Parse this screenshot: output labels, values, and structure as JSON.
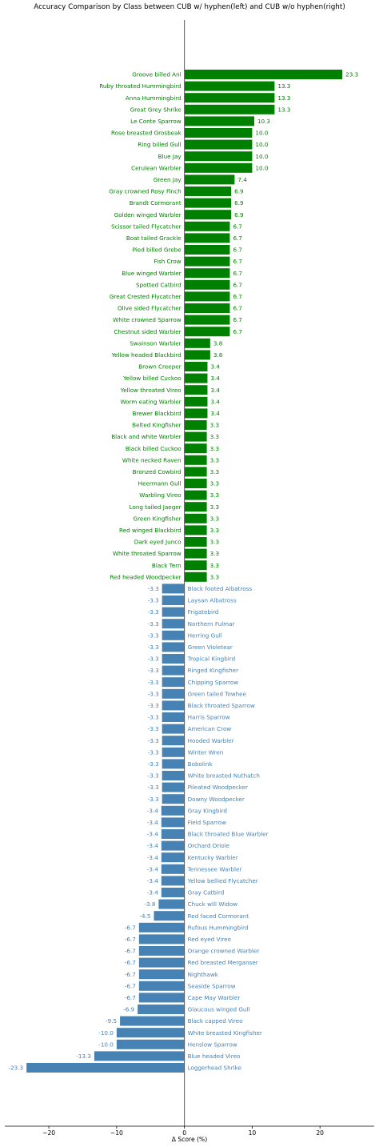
{
  "chart_data": {
    "type": "bar",
    "orientation": "horizontal",
    "title": "Accuracy Comparison by Class between CUB w/ hyphen(left) and CUB w/o hyphen(right)",
    "xlabel": "Δ Score (%)",
    "ylabel": "",
    "xlim": [
      -26.5,
      28
    ],
    "xticks": [
      -20,
      -10,
      0,
      10,
      20
    ],
    "grid": false,
    "colors": {
      "positive": "#008000",
      "negative": "#4682b4",
      "zero_line": "#555555"
    },
    "categories": [
      "Groove billed Ani",
      "Ruby throated Hummingbird",
      "Anna Hummingbird",
      "Great Grey Shrike",
      "Le Conte Sparrow",
      "Rose breasted Grosbeak",
      "Ring billed Gull",
      "Blue Jay",
      "Cerulean Warbler",
      "Green Jay",
      "Gray crowned Rosy Finch",
      "Brandt Cormorant",
      "Golden winged Warbler",
      "Scissor tailed Flycatcher",
      "Boat tailed Grackle",
      "Pied billed Grebe",
      "Fish Crow",
      "Blue winged Warbler",
      "Spotted Catbird",
      "Great Crested Flycatcher",
      "Olive sided Flycatcher",
      "White crowned Sparrow",
      "Chestnut sided Warbler",
      "Swainson Warbler",
      "Yellow headed Blackbird",
      "Brown Creeper",
      "Yellow billed Cuckoo",
      "Yellow throated Vireo",
      "Worm eating Warbler",
      "Brewer Blackbird",
      "Belted Kingfisher",
      "Black and white Warbler",
      "Black billed Cuckoo",
      "White necked Raven",
      "Bronzed Cowbird",
      "Heermann Gull",
      "Warbling Vireo",
      "Long tailed Jaeger",
      "Green Kingfisher",
      "Red winged Blackbird",
      "Dark eyed Junco",
      "White throated Sparrow",
      "Black Tern",
      "Red headed Woodpecker",
      "Black footed Albatross",
      "Laysan Albatross",
      "Frigatebird",
      "Northern Fulmar",
      "Herring Gull",
      "Green Violetear",
      "Tropical Kingbird",
      "Ringed Kingfisher",
      "Chipping Sparrow",
      "Green tailed Towhee",
      "Black throated Sparrow",
      "Harris Sparrow",
      "American Crow",
      "Hooded Warbler",
      "Winter Wren",
      "Bobolink",
      "White breasted Nuthatch",
      "Pileated Woodpecker",
      "Downy Woodpecker",
      "Gray Kingbird",
      "Field Sparrow",
      "Black throated Blue Warbler",
      "Orchard Oriole",
      "Kentucky Warbler",
      "Tennessee Warbler",
      "Yellow bellied Flycatcher",
      "Gray Catbird",
      "Chuck will Widow",
      "Red faced Cormorant",
      "Rufous Hummingbird",
      "Red eyed Vireo",
      "Orange crowned Warbler",
      "Red breasted Merganser",
      "Nighthawk",
      "Seaside Sparrow",
      "Cape May Warbler",
      "Glaucous winged Gull",
      "Black capped Vireo",
      "White breasted Kingfisher",
      "Henslow Sparrow",
      "Blue headed Vireo",
      "Loggerhead Shrike"
    ],
    "values": [
      23.3,
      13.3,
      13.3,
      13.3,
      10.3,
      10.0,
      10.0,
      10.0,
      10.0,
      7.4,
      6.9,
      6.9,
      6.9,
      6.7,
      6.7,
      6.7,
      6.7,
      6.7,
      6.7,
      6.7,
      6.7,
      6.7,
      6.7,
      3.8,
      3.8,
      3.4,
      3.4,
      3.4,
      3.4,
      3.4,
      3.3,
      3.3,
      3.3,
      3.3,
      3.3,
      3.3,
      3.3,
      3.3,
      3.3,
      3.3,
      3.3,
      3.3,
      3.3,
      3.3,
      -3.3,
      -3.3,
      -3.3,
      -3.3,
      -3.3,
      -3.3,
      -3.3,
      -3.3,
      -3.3,
      -3.3,
      -3.3,
      -3.3,
      -3.3,
      -3.3,
      -3.3,
      -3.3,
      -3.3,
      -3.3,
      -3.3,
      -3.4,
      -3.4,
      -3.4,
      -3.4,
      -3.4,
      -3.4,
      -3.4,
      -3.4,
      -3.8,
      -4.5,
      -6.7,
      -6.7,
      -6.7,
      -6.7,
      -6.7,
      -6.7,
      -6.7,
      -6.9,
      -9.5,
      -10.0,
      -10.0,
      -13.3,
      -23.3
    ],
    "value_labels": [
      "23.3",
      "13.3",
      "13.3",
      "13.3",
      "10.3",
      "10.0",
      "10.0",
      "10.0",
      "10.0",
      "7.4",
      "6.9",
      "6.9",
      "6.9",
      "6.7",
      "6.7",
      "6.7",
      "6.7",
      "6.7",
      "6.7",
      "6.7",
      "6.7",
      "6.7",
      "6.7",
      "3.8",
      "3.8",
      "3.4",
      "3.4",
      "3.4",
      "3.4",
      "3.4",
      "3.3",
      "3.3",
      "3.3",
      "3.3",
      "3.3",
      "3.3",
      "3.3",
      "3.3",
      "3.3",
      "3.3",
      "3.3",
      "3.3",
      "3.3",
      "3.3",
      "-3.3",
      "-3.3",
      "-3.3",
      "-3.3",
      "-3.3",
      "-3.3",
      "-3.3",
      "-3.3",
      "-3.3",
      "-3.3",
      "-3.3",
      "-3.3",
      "-3.3",
      "-3.3",
      "-3.3",
      "-3.3",
      "-3.3",
      "-3.3",
      "-3.3",
      "-3.4",
      "-3.4",
      "-3.4",
      "-3.4",
      "-3.4",
      "-3.4",
      "-3.4",
      "-3.4",
      "-3.8",
      "-4.5",
      "-6.7",
      "-6.7",
      "-6.7",
      "-6.7",
      "-6.7",
      "-6.7",
      "-6.7",
      "-6.9",
      "-9.5",
      "-10.0",
      "-10.0",
      "-13.3",
      "-23.3"
    ]
  }
}
